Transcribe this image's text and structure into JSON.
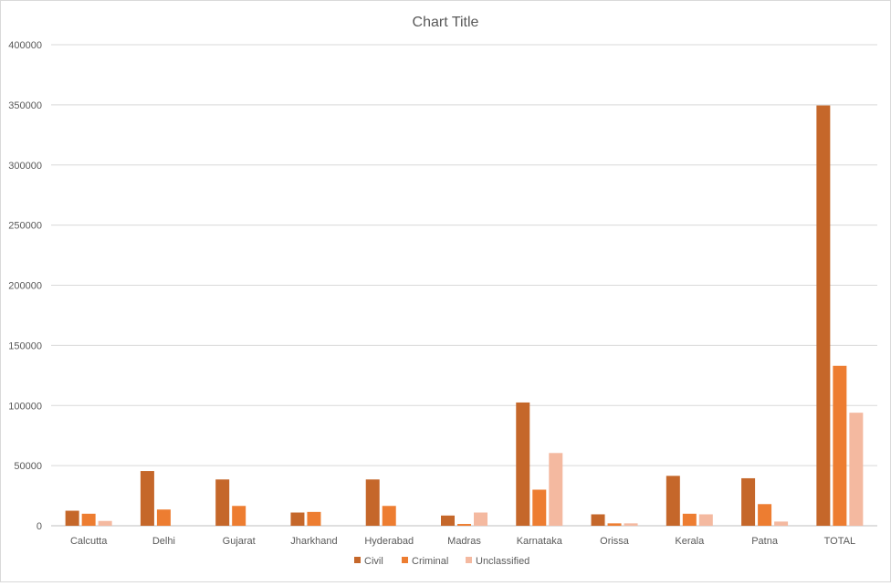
{
  "chart_data": {
    "type": "bar",
    "title": "Chart Title",
    "xlabel": "",
    "ylabel": "",
    "ylim": [
      0,
      400000
    ],
    "yticks": [
      0,
      50000,
      100000,
      150000,
      200000,
      250000,
      300000,
      350000,
      400000
    ],
    "grid": true,
    "legend_position": "bottom",
    "categories": [
      "Calcutta",
      "Delhi",
      "Gujarat",
      "Jharkhand",
      "Hyderabad",
      "Madras",
      "Karnataka",
      "Orissa",
      "Kerala",
      "Patna",
      "TOTAL"
    ],
    "series": [
      {
        "name": "Civil",
        "color": "#c5672a",
        "values": [
          12500,
          45500,
          38500,
          11000,
          38500,
          8500,
          102500,
          9500,
          41500,
          39500,
          349500
        ]
      },
      {
        "name": "Criminal",
        "color": "#ed7d31",
        "values": [
          10000,
          13500,
          16500,
          11500,
          16500,
          1500,
          30000,
          2000,
          10000,
          18000,
          133000
        ]
      },
      {
        "name": "Unclassified",
        "color": "#f4b9a0",
        "values": [
          4000,
          0,
          0,
          0,
          0,
          11000,
          60500,
          2000,
          9500,
          3500,
          94000
        ]
      }
    ]
  }
}
